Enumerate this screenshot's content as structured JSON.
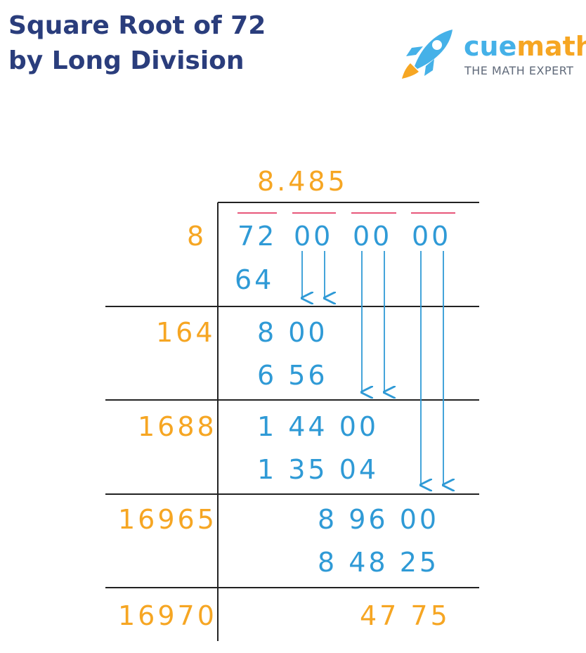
{
  "title": {
    "line1": "Square Root of 72",
    "line2": "by Long Division"
  },
  "logo": {
    "brand_part1": "cue",
    "brand_part2": "math",
    "tagline": "THE MATH EXPERT",
    "icon": "rocket-icon"
  },
  "colors": {
    "title": "#2a3d7c",
    "orange": "#f6a623",
    "blue": "#2f9ad6",
    "pair_bar": "#e8577a",
    "lines": "#222222"
  },
  "division": {
    "quotient": "8.485",
    "dividend_pairs": [
      "72",
      "00",
      "00",
      "00"
    ],
    "rows": [
      {
        "divisor": "8",
        "lines": [
          "",
          "64"
        ]
      },
      {
        "divisor": "164",
        "lines": [
          "8 00",
          "6 56"
        ]
      },
      {
        "divisor": "1688",
        "lines": [
          "1 44 00",
          "1 35 04"
        ]
      },
      {
        "divisor": "16965",
        "lines": [
          "8 96 00",
          "8 48 25"
        ]
      },
      {
        "divisor": "16970",
        "lines": [
          "47 75"
        ]
      }
    ]
  }
}
